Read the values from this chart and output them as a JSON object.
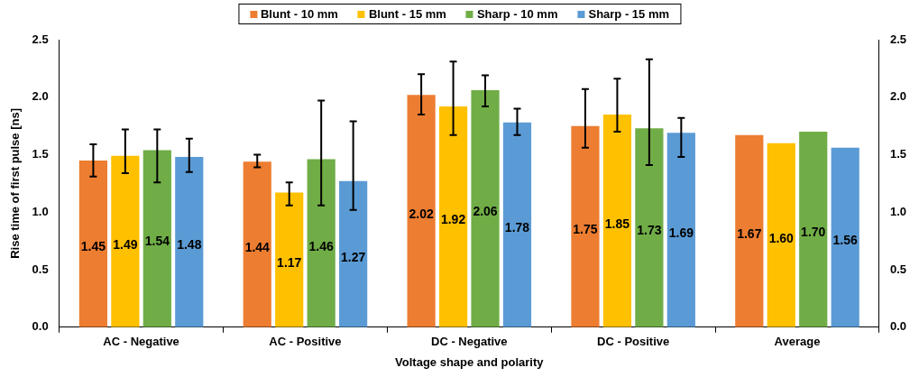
{
  "chart_data": {
    "type": "bar",
    "xlabel": "Voltage shape and polarity",
    "ylabel": "Rise time of first pulse [ns]",
    "categories": [
      "AC - Negative",
      "AC - Positive",
      "DC - Negative",
      "DC - Positive",
      "Average"
    ],
    "series": [
      {
        "name": "Blunt - 10 mm",
        "color": "#ed7d31",
        "values": [
          1.45,
          1.44,
          2.02,
          1.75,
          1.67
        ],
        "value_labels": [
          "1.45",
          "1.44",
          "2.02",
          "1.75",
          "1.67"
        ],
        "errors": [
          [
            1.31,
            1.59
          ],
          [
            1.39,
            1.5
          ],
          [
            1.85,
            2.2
          ],
          [
            1.56,
            2.07
          ],
          null
        ]
      },
      {
        "name": "Blunt - 15 mm",
        "color": "#ffc000",
        "values": [
          1.49,
          1.17,
          1.92,
          1.85,
          1.6
        ],
        "value_labels": [
          "1.49",
          "1.17",
          "1.92",
          "1.85",
          "1.60"
        ],
        "errors": [
          [
            1.34,
            1.72
          ],
          [
            1.06,
            1.26
          ],
          [
            1.67,
            2.31
          ],
          [
            1.7,
            2.16
          ],
          null
        ]
      },
      {
        "name": "Sharp - 10 mm",
        "color": "#70ad47",
        "values": [
          1.54,
          1.46,
          2.06,
          1.73,
          1.7
        ],
        "value_labels": [
          "1.54",
          "1.46",
          "2.06",
          "1.73",
          "1.70"
        ],
        "errors": [
          [
            1.26,
            1.72
          ],
          [
            1.06,
            1.97
          ],
          [
            1.92,
            2.19
          ],
          [
            1.41,
            2.33
          ],
          null
        ]
      },
      {
        "name": "Sharp - 15 mm",
        "color": "#5b9bd5",
        "values": [
          1.48,
          1.27,
          1.78,
          1.69,
          1.56
        ],
        "value_labels": [
          "1.48",
          "1.27",
          "1.78",
          "1.69",
          "1.56"
        ],
        "errors": [
          [
            1.35,
            1.64
          ],
          [
            1.02,
            1.79
          ],
          [
            1.67,
            1.9
          ],
          [
            1.48,
            1.82
          ],
          null
        ]
      }
    ],
    "ylim": [
      0,
      2.5
    ],
    "yticks": [
      {
        "value": 0,
        "label": "0.0"
      },
      {
        "value": 0.5,
        "label": "0.5"
      },
      {
        "value": 1,
        "label": "1.0"
      },
      {
        "value": 1.5,
        "label": "1.5"
      },
      {
        "value": 2,
        "label": "2.0"
      },
      {
        "value": 2.5,
        "label": "2.5"
      }
    ],
    "y2lim": [
      0,
      2.5
    ],
    "y2ticks": [
      {
        "value": 0,
        "label": "0.0"
      },
      {
        "value": 0.5,
        "label": "0.5"
      },
      {
        "value": 1,
        "label": "1.0"
      },
      {
        "value": 1.5,
        "label": "1.5"
      },
      {
        "value": 2,
        "label": "2.0"
      },
      {
        "value": 2.5,
        "label": "2.5"
      }
    ],
    "grid": false,
    "legend": "top"
  }
}
